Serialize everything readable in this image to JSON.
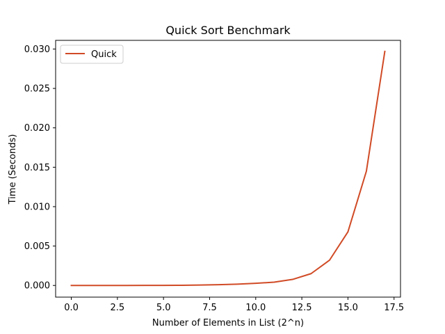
{
  "chart_data": {
    "type": "line",
    "title": "Quick Sort Benchmark",
    "xlabel": "Number of Elements in List (2^n)",
    "ylabel": "Time (Seconds)",
    "xlim": [
      -0.85,
      17.85
    ],
    "ylim": [
      -0.00148,
      0.0311
    ],
    "x_ticks": [
      0.0,
      2.5,
      5.0,
      7.5,
      10.0,
      12.5,
      15.0,
      17.5
    ],
    "x_tick_labels": [
      "0.0",
      "2.5",
      "5.0",
      "7.5",
      "10.0",
      "12.5",
      "15.0",
      "17.5"
    ],
    "y_ticks": [
      0.0,
      0.005,
      0.01,
      0.015,
      0.02,
      0.025,
      0.03
    ],
    "y_tick_labels": [
      "0.000",
      "0.005",
      "0.010",
      "0.015",
      "0.020",
      "0.025",
      "0.030"
    ],
    "grid": false,
    "legend_position": "top-left",
    "series": [
      {
        "name": "Quick",
        "color": "#d04a25",
        "x": [
          0,
          1,
          2,
          3,
          4,
          5,
          6,
          7,
          8,
          9,
          10,
          11,
          12,
          13,
          14,
          15,
          16,
          17
        ],
        "values": [
          5e-07,
          1e-06,
          2e-06,
          3e-06,
          6e-06,
          1.2e-05,
          2.5e-05,
          5e-05,
          0.0001,
          0.00016,
          0.00027,
          0.00042,
          0.00077,
          0.0015,
          0.0032,
          0.0068,
          0.0145,
          0.0297
        ]
      }
    ]
  }
}
